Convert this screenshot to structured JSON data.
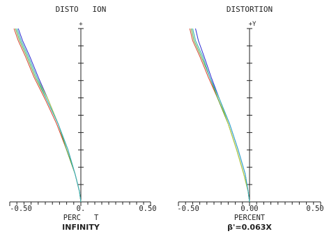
{
  "chart_data": [
    {
      "type": "line",
      "title": "DISTO   ION",
      "xlabel": "PERC   T",
      "subtitle": "INFINITY",
      "axis_marker": "+",
      "x_tick_labels": [
        "-0.50",
        "0.",
        "0.50"
      ],
      "xlim": [
        -0.5,
        0.5
      ],
      "ylim": [
        0,
        1
      ],
      "grid": false,
      "series": [
        {
          "color": "#2a2ad4",
          "x": [
            -0.44,
            -0.41,
            -0.36,
            -0.3,
            -0.23,
            -0.16,
            -0.09,
            -0.04,
            -0.01,
            0.0
          ],
          "y": [
            1.0,
            0.93,
            0.84,
            0.72,
            0.59,
            0.45,
            0.3,
            0.16,
            0.06,
            0.0
          ]
        },
        {
          "color": "#d4402a",
          "x": [
            -0.47,
            -0.44,
            -0.39,
            -0.33,
            -0.25,
            -0.17,
            -0.1,
            -0.04,
            -0.01,
            0.0
          ],
          "y": [
            1.0,
            0.93,
            0.84,
            0.72,
            0.59,
            0.45,
            0.3,
            0.16,
            0.06,
            0.0
          ]
        },
        {
          "color": "#5aa83a",
          "x": [
            -0.46,
            -0.43,
            -0.38,
            -0.32,
            -0.24,
            -0.16,
            -0.1,
            -0.04,
            -0.01,
            0.0
          ],
          "y": [
            1.0,
            0.93,
            0.84,
            0.72,
            0.59,
            0.45,
            0.3,
            0.16,
            0.06,
            0.0
          ]
        },
        {
          "color": "#b0d040",
          "x": [
            -0.45,
            -0.42,
            -0.37,
            -0.31,
            -0.23,
            -0.16,
            -0.09,
            -0.04,
            -0.01,
            0.0
          ],
          "y": [
            1.0,
            0.93,
            0.84,
            0.72,
            0.59,
            0.45,
            0.3,
            0.16,
            0.06,
            0.0
          ]
        },
        {
          "color": "#30b0c8",
          "x": [
            -0.45,
            -0.42,
            -0.37,
            -0.31,
            -0.24,
            -0.16,
            -0.09,
            -0.04,
            -0.01,
            0.0
          ],
          "y": [
            1.0,
            0.93,
            0.84,
            0.72,
            0.59,
            0.45,
            0.3,
            0.16,
            0.06,
            0.0
          ]
        }
      ]
    },
    {
      "type": "line",
      "title": "DISTORTION",
      "xlabel": "PERCENT",
      "subtitle": "β'=0.063X",
      "axis_marker": "+Y",
      "x_tick_labels": [
        "-0.50",
        "0.00",
        "0.50"
      ],
      "xlim": [
        -0.5,
        0.5
      ],
      "ylim": [
        0,
        1
      ],
      "grid": false,
      "series": [
        {
          "color": "#2a2ad4",
          "x": [
            -0.38,
            -0.36,
            -0.32,
            -0.27,
            -0.21,
            -0.14,
            -0.08,
            -0.03,
            -0.01,
            0.0
          ],
          "y": [
            1.0,
            0.93,
            0.84,
            0.72,
            0.59,
            0.45,
            0.3,
            0.16,
            0.06,
            0.0
          ]
        },
        {
          "color": "#d4402a",
          "x": [
            -0.42,
            -0.4,
            -0.35,
            -0.29,
            -0.22,
            -0.15,
            -0.09,
            -0.04,
            -0.01,
            0.0
          ],
          "y": [
            1.0,
            0.93,
            0.84,
            0.72,
            0.59,
            0.45,
            0.3,
            0.16,
            0.06,
            0.0
          ]
        },
        {
          "color": "#5aa83a",
          "x": [
            -0.41,
            -0.39,
            -0.34,
            -0.28,
            -0.22,
            -0.15,
            -0.09,
            -0.04,
            -0.01,
            0.0
          ],
          "y": [
            1.0,
            0.93,
            0.84,
            0.72,
            0.59,
            0.45,
            0.3,
            0.16,
            0.06,
            0.0
          ]
        },
        {
          "color": "#b0d040",
          "x": [
            -0.4,
            -0.38,
            -0.33,
            -0.28,
            -0.21,
            -0.15,
            -0.09,
            -0.04,
            -0.01,
            0.0
          ],
          "y": [
            1.0,
            0.93,
            0.84,
            0.72,
            0.59,
            0.45,
            0.3,
            0.16,
            0.06,
            0.0
          ]
        },
        {
          "color": "#30b0c8",
          "x": [
            -0.4,
            -0.38,
            -0.33,
            -0.28,
            -0.21,
            -0.14,
            -0.08,
            -0.03,
            -0.01,
            0.0
          ],
          "y": [
            1.0,
            0.93,
            0.84,
            0.72,
            0.59,
            0.45,
            0.3,
            0.16,
            0.06,
            0.0
          ]
        }
      ]
    }
  ]
}
